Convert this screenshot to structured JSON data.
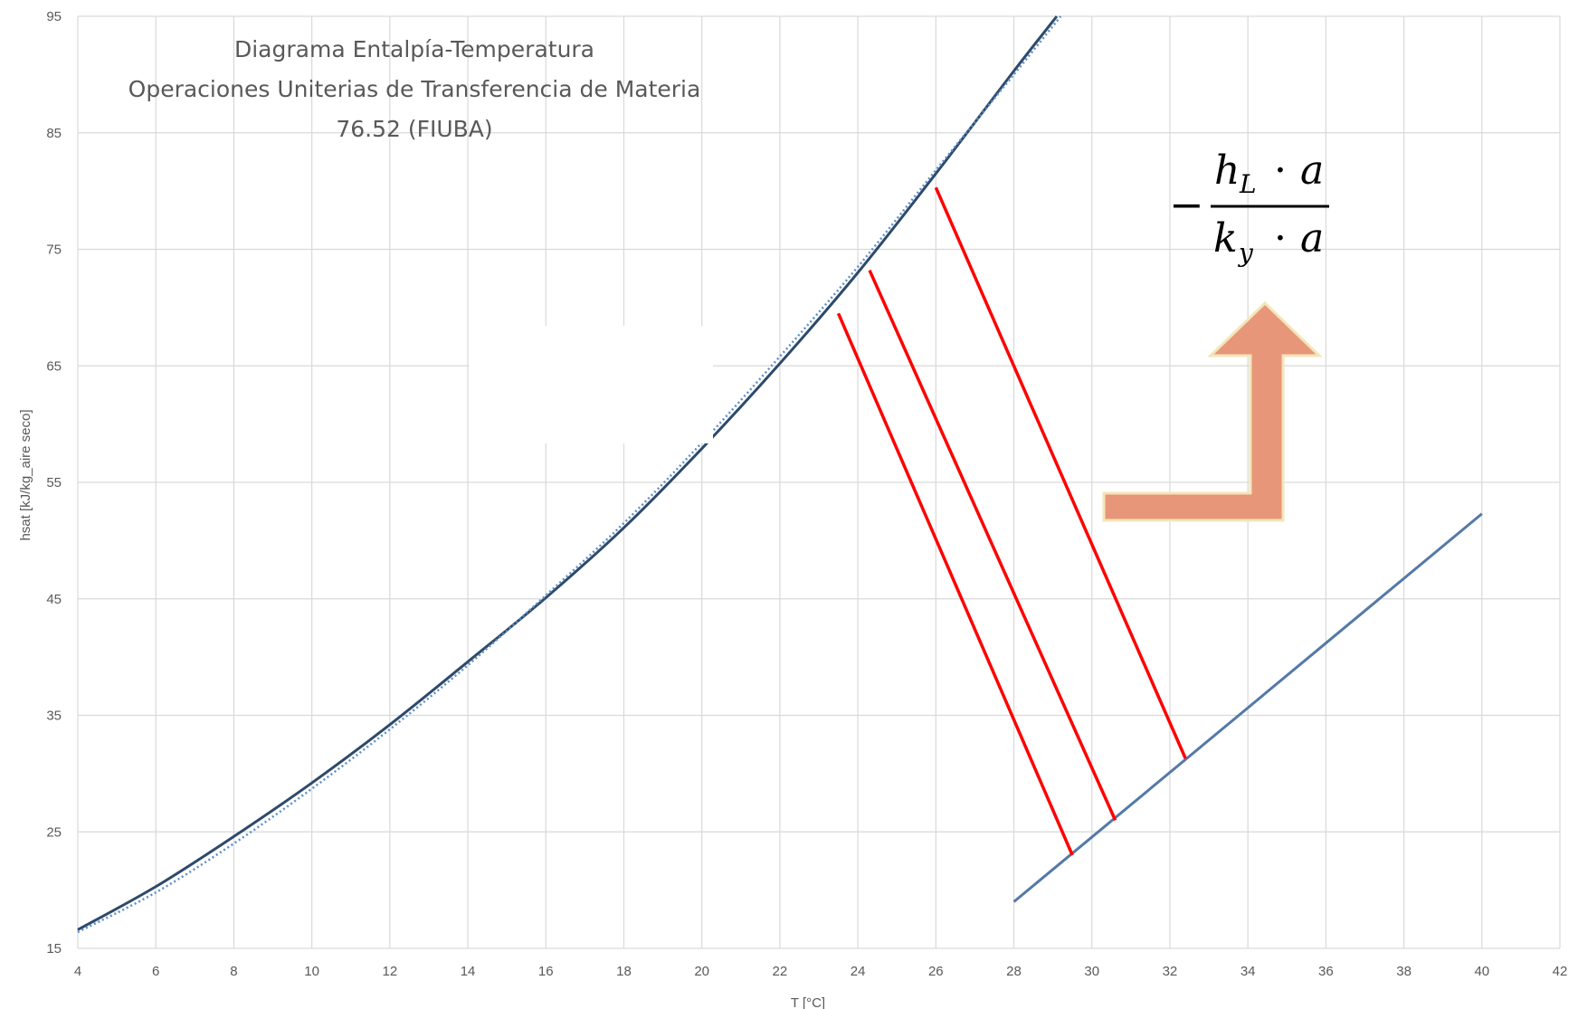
{
  "chart_data": {
    "type": "line",
    "title_lines": [
      "Diagrama Entalpía-Temperatura",
      "Operaciones Uniterias de Transferencia de Materia",
      "76.52 (FIUBA)"
    ],
    "xlabel": "T [°C]",
    "ylabel": "hsat [kJ/kg_aire seco]",
    "xlim": [
      4,
      42
    ],
    "ylim": [
      15,
      95
    ],
    "x_ticks": [
      "4",
      "6",
      "8",
      "10",
      "12",
      "14",
      "16",
      "18",
      "20",
      "22",
      "24",
      "26",
      "28",
      "30",
      "32",
      "34",
      "36",
      "38",
      "40",
      "42"
    ],
    "y_ticks": [
      "15",
      "25",
      "35",
      "45",
      "55",
      "65",
      "75",
      "85",
      "95"
    ],
    "grid": true,
    "colors": {
      "equilibrium": "#2e4a6b",
      "fit_dotted": "#5b8dc9",
      "operating": "#5479a8",
      "tie_lines": "#ff0000",
      "arrow_fill": "#e8967a",
      "arrow_stroke": "#f2e6b8",
      "grid": "#d9d9d9"
    },
    "series": [
      {
        "style": "solid",
        "x": [
          4,
          6,
          8,
          10,
          12,
          14,
          16,
          18,
          20,
          22,
          24,
          26,
          28,
          29.1
        ],
        "y": [
          16.6,
          20.3,
          24.6,
          29.2,
          34.2,
          39.6,
          45.1,
          51.1,
          57.9,
          65.2,
          73.0,
          81.5,
          90.3,
          95.0
        ]
      },
      {
        "style": "dotted",
        "x": [
          4,
          6,
          8,
          10,
          12,
          14,
          16,
          18,
          20,
          22,
          24,
          26,
          28,
          29.2
        ],
        "y": [
          16.4,
          19.8,
          24.0,
          28.7,
          33.8,
          39.3,
          45.3,
          51.5,
          58.4,
          65.8,
          73.5,
          81.8,
          90.0,
          95.0
        ]
      },
      {
        "style": "solid",
        "x": [
          28,
          40
        ],
        "y": [
          19.0,
          52.3
        ]
      }
    ],
    "tie_lines": [
      {
        "x": [
          23.5,
          29.5
        ],
        "y": [
          69.5,
          23.0
        ]
      },
      {
        "x": [
          24.3,
          30.6
        ],
        "y": [
          73.2,
          26.0
        ]
      },
      {
        "x": [
          26.0,
          32.4
        ],
        "y": [
          80.3,
          31.3
        ]
      }
    ],
    "annotation": {
      "formula": {
        "minus": "−",
        "numerator": {
          "var": "h",
          "sub": "L",
          "dot": "·",
          "a": "a"
        },
        "denominator": {
          "var": "k",
          "sub": "y",
          "dot": "·",
          "a": "a"
        }
      },
      "arrow_icon": "arrow-turn-up-icon"
    }
  }
}
